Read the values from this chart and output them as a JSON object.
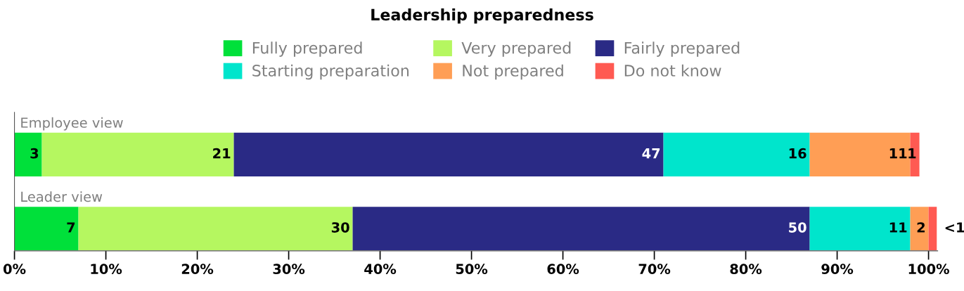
{
  "chart_data": {
    "type": "bar",
    "orientation": "horizontal",
    "stacked": true,
    "title": "Leadership preparedness",
    "categories": [
      "Employee view",
      "Leader view"
    ],
    "series": [
      {
        "name": "Fully prepared",
        "color": "#00e03a",
        "values": [
          3,
          7
        ],
        "value_labels": [
          "3",
          "7"
        ]
      },
      {
        "name": "Very prepared",
        "color": "#b5f760",
        "values": [
          21,
          30
        ],
        "value_labels": [
          "21",
          "30"
        ]
      },
      {
        "name": "Fairly prepared",
        "color": "#2a2a85",
        "values": [
          47,
          50
        ],
        "value_labels": [
          "47",
          "50"
        ]
      },
      {
        "name": "Starting preparation",
        "color": "#00e5cc",
        "values": [
          16,
          11
        ],
        "value_labels": [
          "16",
          "11"
        ]
      },
      {
        "name": "Not prepared",
        "color": "#ff9e55",
        "values": [
          11,
          2
        ],
        "value_labels": [
          "11",
          "2"
        ]
      },
      {
        "name": "Do not know",
        "color": "#ff5a52",
        "values": [
          1,
          0.9
        ],
        "value_labels": [
          "1",
          "<1"
        ]
      }
    ],
    "xlim": [
      0,
      101
    ],
    "xticks": [
      {
        "value": 0,
        "label": "0%"
      },
      {
        "value": 10,
        "label": "10%"
      },
      {
        "value": 20,
        "label": "20%"
      },
      {
        "value": 30,
        "label": "30%"
      },
      {
        "value": 40,
        "label": "40%"
      },
      {
        "value": 50,
        "label": "50%"
      },
      {
        "value": 60,
        "label": "60%"
      },
      {
        "value": 70,
        "label": "70%"
      },
      {
        "value": 80,
        "label": "80%"
      },
      {
        "value": 90,
        "label": "90%"
      },
      {
        "value": 100,
        "label": "100%"
      }
    ],
    "grid": false,
    "legend": "top"
  }
}
